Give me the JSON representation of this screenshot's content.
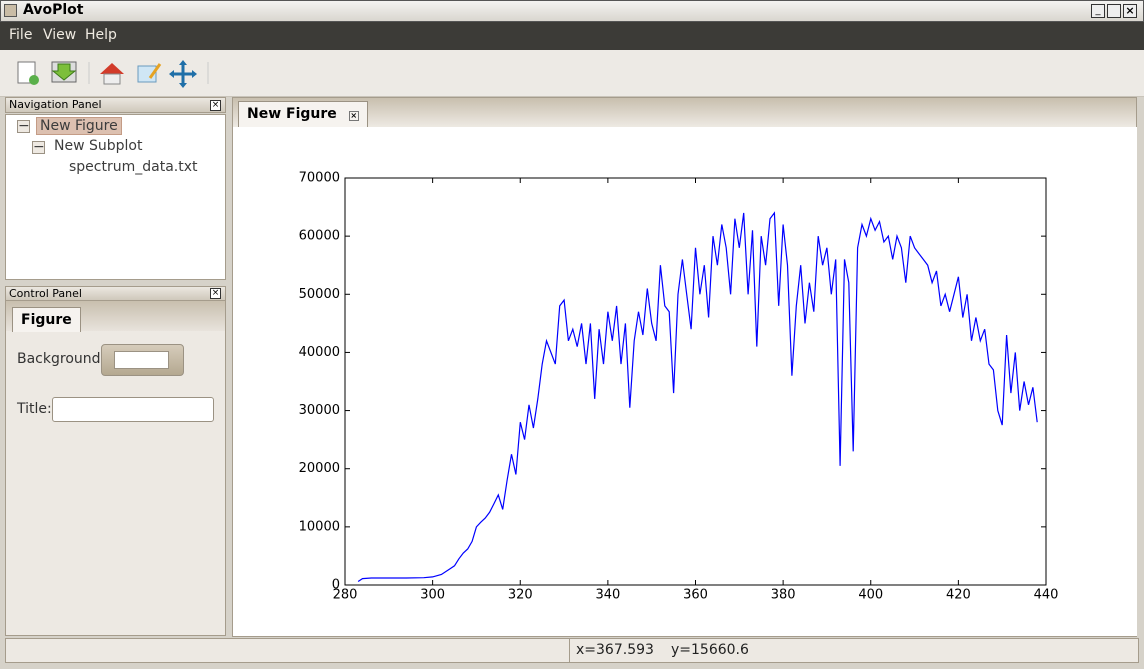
{
  "window": {
    "title": "AvoPlot",
    "menu": [
      "File",
      "View",
      "Help"
    ],
    "navigation_panel": {
      "title": "Navigation Panel",
      "tree": [
        "New Figure",
        "New Subplot",
        "spectrum_data.txt"
      ]
    },
    "control_panel": {
      "title": "Control Panel",
      "tab": "Figure",
      "background_label": "Background:",
      "title_label": "Title:"
    },
    "figure_tab": "New Figure",
    "status": {
      "x": "x=367.593",
      "y": "y=15660.6"
    }
  },
  "chart_data": {
    "type": "line",
    "x": [
      283,
      284,
      286,
      290,
      294,
      298,
      300,
      302,
      304,
      305,
      306,
      307,
      308,
      309,
      310,
      311,
      312,
      313,
      314,
      315,
      316,
      317,
      318,
      319,
      320,
      321,
      322,
      323,
      324,
      325,
      326,
      327,
      328,
      329,
      330,
      331,
      332,
      333,
      334,
      335,
      336,
      337,
      338,
      339,
      340,
      341,
      342,
      343,
      344,
      345,
      346,
      347,
      348,
      349,
      350,
      351,
      352,
      353,
      354,
      355,
      356,
      357,
      358,
      359,
      360,
      361,
      362,
      363,
      364,
      365,
      366,
      367,
      368,
      369,
      370,
      371,
      372,
      373,
      374,
      375,
      376,
      377,
      378,
      379,
      380,
      381,
      382,
      383,
      384,
      385,
      386,
      387,
      388,
      389,
      390,
      391,
      392,
      393,
      394,
      395,
      396,
      397,
      398,
      399,
      400,
      401,
      402,
      403,
      404,
      405,
      406,
      407,
      408,
      409,
      410,
      411,
      412,
      413,
      414,
      415,
      416,
      417,
      418,
      419,
      420,
      421,
      422,
      423,
      424,
      425,
      426,
      427,
      428,
      429,
      430,
      431,
      432,
      433,
      434,
      435,
      436,
      437,
      438
    ],
    "series": [
      {
        "color": "#0000ff",
        "values": [
          600,
          1100,
          1200,
          1200,
          1200,
          1250,
          1400,
          1800,
          2800,
          3300,
          4500,
          5500,
          6200,
          7500,
          10000,
          10800,
          11500,
          12500,
          14000,
          15500,
          13000,
          18000,
          22500,
          19000,
          28000,
          25000,
          31000,
          27000,
          32000,
          38000,
          42000,
          40000,
          38000,
          48000,
          49000,
          42000,
          44000,
          41000,
          45000,
          38000,
          45000,
          32000,
          44000,
          38000,
          47000,
          42000,
          48000,
          38000,
          45000,
          30500,
          42000,
          47000,
          43000,
          51000,
          45000,
          42000,
          55000,
          48000,
          47000,
          33000,
          50000,
          56000,
          50000,
          44000,
          58000,
          50000,
          55000,
          46000,
          60000,
          55000,
          62000,
          58000,
          50000,
          63000,
          58000,
          64000,
          50000,
          61000,
          41000,
          60000,
          55000,
          63000,
          64000,
          48000,
          62000,
          55000,
          36000,
          48000,
          55000,
          45000,
          52000,
          47000,
          60000,
          55000,
          58000,
          50000,
          56000,
          20500,
          56000,
          52000,
          23000,
          58000,
          62000,
          60000,
          63000,
          61000,
          62500,
          59000,
          60000,
          56000,
          60000,
          58000,
          52000,
          60000,
          58000,
          57000,
          56000,
          55000,
          52000,
          54000,
          48000,
          50000,
          47000,
          50000,
          53000,
          46000,
          50000,
          42000,
          46000,
          42000,
          44000,
          38000,
          37000,
          30000,
          27500,
          43000,
          33000,
          40000,
          30000,
          35000,
          31000,
          34000,
          28000
        ]
      }
    ],
    "xlim": [
      280,
      440
    ],
    "ylim": [
      0,
      70000
    ],
    "xticks": [
      280,
      300,
      320,
      340,
      360,
      380,
      400,
      420,
      440
    ],
    "yticks": [
      0,
      10000,
      20000,
      30000,
      40000,
      50000,
      60000,
      70000
    ]
  }
}
